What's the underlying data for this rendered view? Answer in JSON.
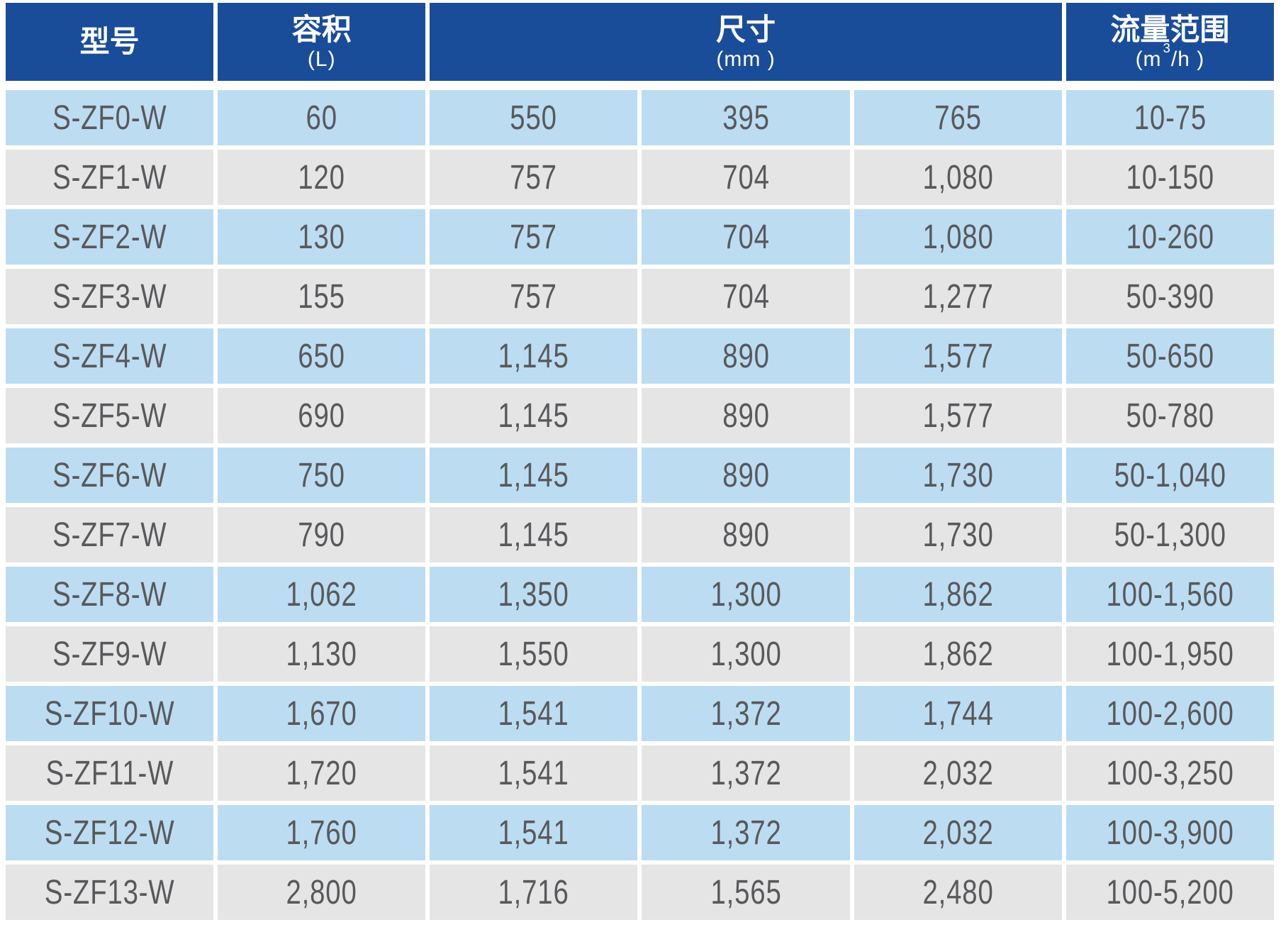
{
  "table": {
    "header": {
      "model_title": "型号",
      "volume_title": "容积",
      "volume_unit": "(L)",
      "size_title": "尺寸",
      "size_unit": "(mm )",
      "flow_title": "流量范围",
      "flow_unit_pre": "(m",
      "flow_unit_sup": "3",
      "flow_unit_post": "/h )"
    },
    "rows": [
      [
        "S-ZF0-W",
        "60",
        "550",
        "395",
        "765",
        "10-75"
      ],
      [
        "S-ZF1-W",
        "120",
        "757",
        "704",
        "1,080",
        "10-150"
      ],
      [
        "S-ZF2-W",
        "130",
        "757",
        "704",
        "1,080",
        "10-260"
      ],
      [
        "S-ZF3-W",
        "155",
        "757",
        "704",
        "1,277",
        "50-390"
      ],
      [
        "S-ZF4-W",
        "650",
        "1,145",
        "890",
        "1,577",
        "50-650"
      ],
      [
        "S-ZF5-W",
        "690",
        "1,145",
        "890",
        "1,577",
        "50-780"
      ],
      [
        "S-ZF6-W",
        "750",
        "1,145",
        "890",
        "1,730",
        "50-1,040"
      ],
      [
        "S-ZF7-W",
        "790",
        "1,145",
        "890",
        "1,730",
        "50-1,300"
      ],
      [
        "S-ZF8-W",
        "1,062",
        "1,350",
        "1,300",
        "1,862",
        "100-1,560"
      ],
      [
        "S-ZF9-W",
        "1,130",
        "1,550",
        "1,300",
        "1,862",
        "100-1,950"
      ],
      [
        "S-ZF10-W",
        "1,670",
        "1,541",
        "1,372",
        "1,744",
        "100-2,600"
      ],
      [
        "S-ZF11-W",
        "1,720",
        "1,541",
        "1,372",
        "2,032",
        "100-3,250"
      ],
      [
        "S-ZF12-W",
        "1,760",
        "1,541",
        "1,372",
        "2,032",
        "100-3,900"
      ],
      [
        "S-ZF13-W",
        "2,800",
        "1,716",
        "1,565",
        "2,480",
        "100-5,200"
      ]
    ]
  },
  "colors": {
    "header_bg": "#1a4d99",
    "header_text": "#ffffff",
    "row_blue": "#bcdcf2",
    "row_gray": "#e5e5e6",
    "cell_text": "#58595b",
    "gap": "#ffffff"
  }
}
